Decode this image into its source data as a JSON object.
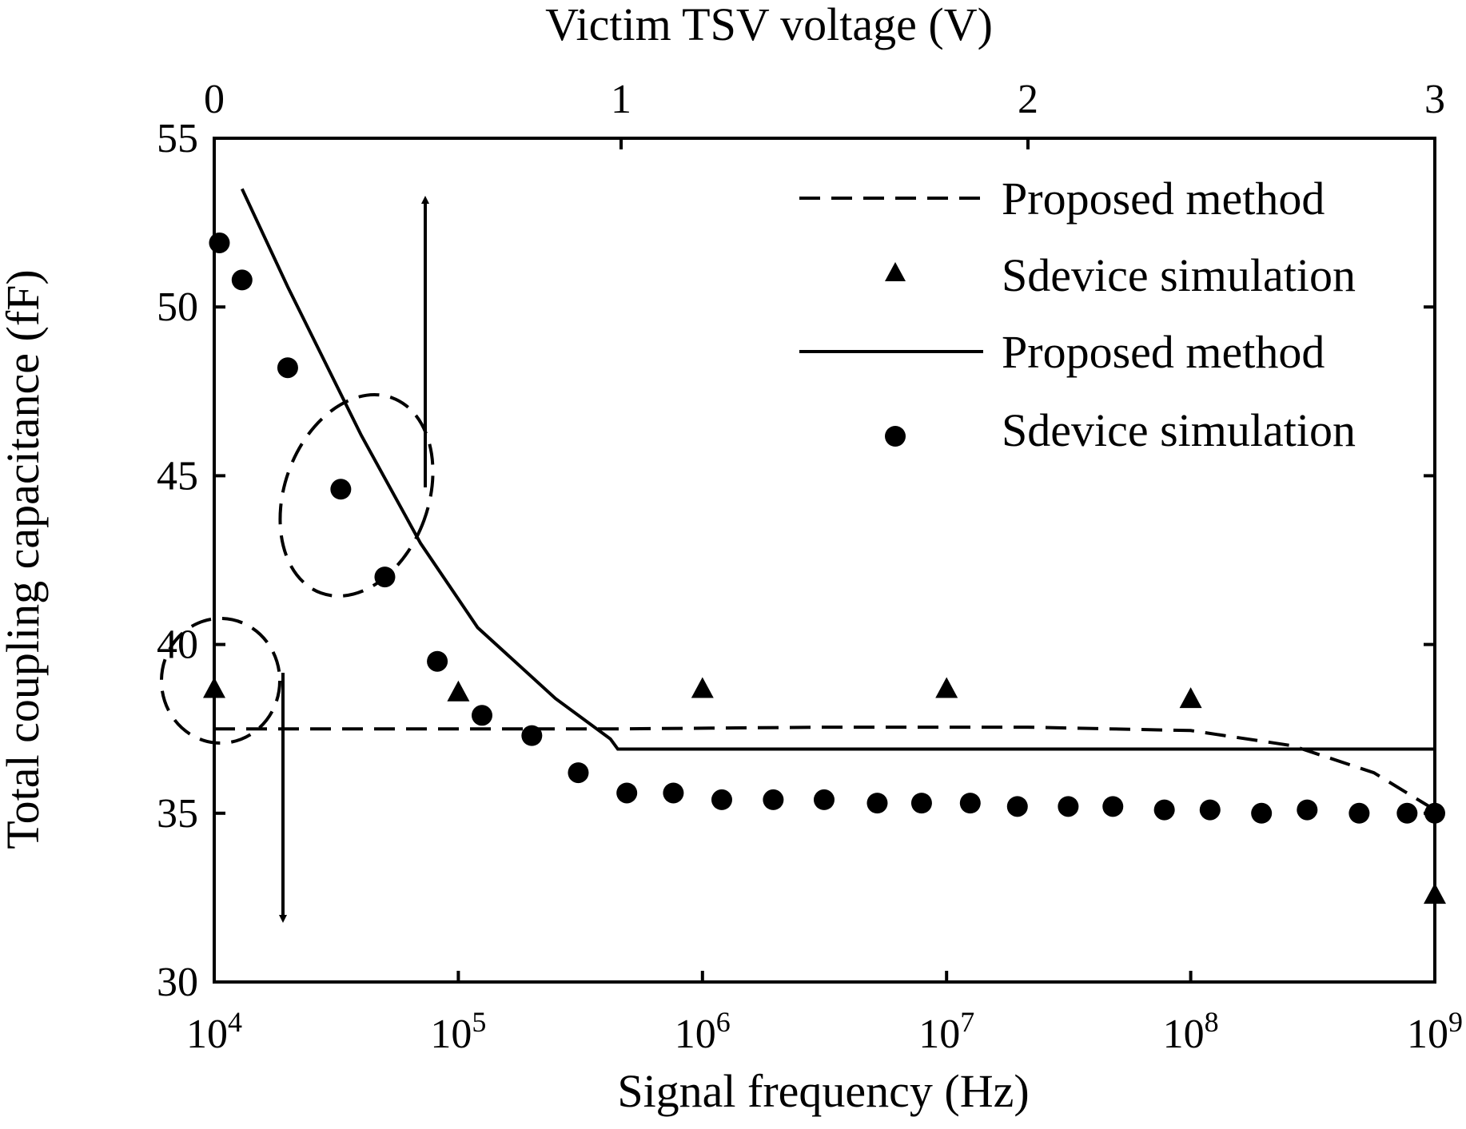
{
  "chart_data": {
    "type": "line",
    "top_xlabel": "Victim TSV voltage (V)",
    "xlabel": "Signal frequency (Hz)",
    "ylabel": "Total coupling capacitance (fF)",
    "ylim": [
      30,
      55
    ],
    "yticks": [
      "30",
      "35",
      "40",
      "45",
      "50",
      "55"
    ],
    "top_xlim": [
      0,
      3
    ],
    "top_xticks": [
      "0",
      "1",
      "2",
      "3"
    ],
    "bottom_xlim_log10": [
      4,
      9
    ],
    "bottom_xticks": [
      {
        "base": "10",
        "exp": "4"
      },
      {
        "base": "10",
        "exp": "5"
      },
      {
        "base": "10",
        "exp": "6"
      },
      {
        "base": "10",
        "exp": "7"
      },
      {
        "base": "10",
        "exp": "8"
      },
      {
        "base": "10",
        "exp": "9"
      }
    ],
    "legend_position": "top-right",
    "grid": false,
    "series": [
      {
        "name": "Proposed method",
        "style": "dashed",
        "axis": "top",
        "x": [
          0,
          0.5,
          1.0,
          1.5,
          2.0,
          2.4,
          2.65,
          2.85,
          3.0
        ],
        "y": [
          37.5,
          37.5,
          37.5,
          37.55,
          37.55,
          37.45,
          37.0,
          36.2,
          35.1
        ]
      },
      {
        "name": "Sdevice simulation",
        "style": "triangle",
        "axis": "top",
        "x": [
          0,
          0.6,
          1.2,
          1.8,
          2.4,
          3.0
        ],
        "y": [
          38.7,
          38.6,
          38.7,
          38.7,
          38.4,
          32.6
        ]
      },
      {
        "name": "Proposed method",
        "style": "solid",
        "axis": "bottom",
        "x": [
          13000,
          20000,
          40000,
          70000,
          120000,
          250000,
          420000,
          450000,
          1000000,
          1000000000
        ],
        "y": [
          53.5,
          50.6,
          46.2,
          43.0,
          40.5,
          38.4,
          37.2,
          36.9,
          36.9,
          36.9
        ]
      },
      {
        "name": "Sdevice simulation",
        "style": "circle",
        "axis": "bottom",
        "x": [
          10500,
          13000,
          20000,
          33000,
          50000,
          82000,
          125000,
          200000,
          310000,
          490000,
          760000,
          1200000,
          1950000,
          3150000,
          5200000,
          7900000,
          12500000,
          19500000,
          31500000,
          48000000,
          78000000,
          120000000,
          195000000,
          300000000,
          490000000,
          770000000,
          1000000000
        ],
        "y": [
          51.9,
          50.8,
          48.2,
          44.6,
          42.0,
          39.5,
          37.9,
          37.3,
          36.2,
          35.6,
          35.6,
          35.4,
          35.4,
          35.4,
          35.3,
          35.3,
          35.3,
          35.2,
          35.2,
          35.2,
          35.1,
          35.1,
          35.0,
          35.1,
          35.0,
          35.0,
          35.0
        ]
      }
    ]
  }
}
